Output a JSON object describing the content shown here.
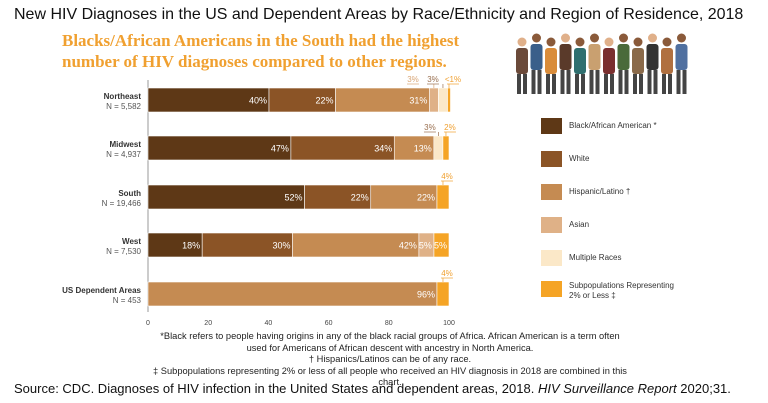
{
  "title": "New HIV Diagnoses in the US and Dependent Areas by Race/Ethnicity and Region of Residence, 2018",
  "subtitle": "Blacks/African Americans in the South had the highest number of HIV diagnoses compared to other regions.",
  "chart_data": {
    "type": "bar",
    "orientation": "horizontal-stacked",
    "xlim": [
      0,
      100
    ],
    "xticks": [
      "0",
      "20",
      "40",
      "60",
      "80",
      "100"
    ],
    "categories": [
      {
        "name": "Northeast",
        "n": "N = 5,582"
      },
      {
        "name": "Midwest",
        "n": "N = 4,937"
      },
      {
        "name": "South",
        "n": "N = 19,466"
      },
      {
        "name": "West",
        "n": "N = 7,530"
      },
      {
        "name": "US Dependent Areas",
        "n": "N = 453"
      }
    ],
    "series": [
      {
        "name": "Black/African American *",
        "color": "#5e3816",
        "values": [
          40,
          47,
          52,
          18,
          0
        ],
        "labels": [
          "40%",
          "47%",
          "52%",
          "18%",
          ""
        ]
      },
      {
        "name": "White",
        "color": "#8b5426",
        "values": [
          22,
          34,
          22,
          30,
          0
        ],
        "labels": [
          "22%",
          "34%",
          "22%",
          "30%",
          ""
        ]
      },
      {
        "name": "Hispanic/Latino †",
        "color": "#c58b52",
        "values": [
          31,
          13,
          22,
          42,
          96
        ],
        "labels": [
          "31%",
          "13%",
          "22%",
          "42%",
          "96%"
        ]
      },
      {
        "name": "Asian",
        "color": "#dfb187",
        "values": [
          3,
          0,
          0,
          5,
          0
        ],
        "labels": [
          "3%",
          "",
          "",
          "5%",
          ""
        ]
      },
      {
        "name": "Multiple Races",
        "color": "#fbe8c8",
        "values": [
          3,
          3,
          0,
          0,
          0
        ],
        "labels": [
          "3%",
          "3%",
          "",
          "",
          ""
        ]
      },
      {
        "name": "Subpopulations Representing 2% or Less ‡",
        "color": "#f5a425",
        "values": [
          0.5,
          2,
          4,
          5,
          4
        ],
        "labels": [
          "<1%",
          "2%",
          "4%",
          "5%",
          "4%"
        ]
      }
    ]
  },
  "footnotes": [
    "*Black refers to people having origins in any of the black racial groups of Africa. African American is a term often used for Americans of African descent with ancestry in North America.",
    "† Hispanics/Latinos can be of any race.",
    "‡ Subpopulations representing 2% or less of all people who received an HIV diagnosis in 2018 are combined in this chart."
  ],
  "source_prefix": "Source: CDC. Diagnoses of HIV infection in the United States and dependent areas, 2018. ",
  "source_journal": "HIV Surveillance Report",
  "source_suffix": " 2020;31."
}
